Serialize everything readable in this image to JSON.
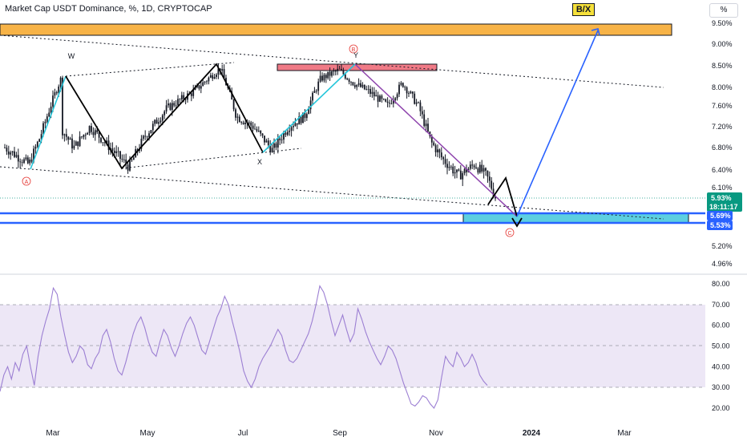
{
  "header": {
    "title": "Market Cap USDT Dominance, %, 1D, CRYPTOCAP",
    "badge": "B/X",
    "unit": "%"
  },
  "colors": {
    "price_bar": "#131722",
    "channel_line": "#131722",
    "wave_black": "#000000",
    "wave_cyan": "#26c6da",
    "wave_purple": "#8e44ad",
    "wave_blue": "#2962ff",
    "orange_zone": "#f7b347",
    "red_zone": "#f07a86",
    "teal_zone": "#5ccfe0",
    "blue_line": "#2962ff",
    "rsi_line": "#9c7fd3",
    "rsi_band": "#ede7f6",
    "label_red": "#e53935",
    "price_badge": "#089981",
    "level_badge": "#2962ff"
  },
  "chart_data": [
    {
      "type": "candlestick",
      "name": "price",
      "y_axis_ticks": [
        "9.50%",
        "9.00%",
        "8.50%",
        "8.00%",
        "7.60%",
        "7.20%",
        "6.80%",
        "6.40%",
        "6.10%",
        "5.20%",
        "4.96%"
      ],
      "x_axis_ticks": [
        "Mar",
        "May",
        "Jul",
        "Sep",
        "Nov",
        "2024",
        "Mar"
      ],
      "last_price_label": "5.93%",
      "countdown_label": "18:11:17",
      "levels": [
        "5.69%",
        "5.53%"
      ],
      "wave_labels": [
        "A",
        "W",
        "X",
        "B",
        "Y",
        "C"
      ],
      "price_path": [
        {
          "x": "Jan 05",
          "y": 6.8
        },
        {
          "x": "Jan 20",
          "y": 6.5
        },
        {
          "x": "Feb 04",
          "y": 6.42
        },
        {
          "x": "Feb 12",
          "y": 7.0
        },
        {
          "x": "Feb 25",
          "y": 8.2
        },
        {
          "x": "Mar 05",
          "y": 7.4
        },
        {
          "x": "Mar 18",
          "y": 6.8
        },
        {
          "x": "Mar 28",
          "y": 7.2
        },
        {
          "x": "Apr 10",
          "y": 6.8
        },
        {
          "x": "Apr 22",
          "y": 6.45
        },
        {
          "x": "May 01",
          "y": 7.0
        },
        {
          "x": "May 15",
          "y": 7.55
        },
        {
          "x": "Jun 01",
          "y": 7.9
        },
        {
          "x": "Jun 18",
          "y": 8.45
        },
        {
          "x": "Jun 28",
          "y": 7.4
        },
        {
          "x": "Jul 08",
          "y": 7.2
        },
        {
          "x": "Jul 20",
          "y": 6.75
        },
        {
          "x": "Jul 30",
          "y": 7.2
        },
        {
          "x": "Aug 10",
          "y": 7.4
        },
        {
          "x": "Aug 20",
          "y": 8.2
        },
        {
          "x": "Sep 01",
          "y": 8.4
        },
        {
          "x": "Sep 10",
          "y": 8.1
        },
        {
          "x": "Sep 20",
          "y": 7.9
        },
        {
          "x": "Oct 01",
          "y": 7.6
        },
        {
          "x": "Oct 10",
          "y": 8.1
        },
        {
          "x": "Oct 20",
          "y": 7.6
        },
        {
          "x": "Oct 28",
          "y": 6.9
        },
        {
          "x": "Nov 05",
          "y": 6.6
        },
        {
          "x": "Nov 15",
          "y": 6.3
        },
        {
          "x": "Nov 25",
          "y": 6.5
        },
        {
          "x": "Dec 02",
          "y": 6.3
        },
        {
          "x": "Dec 08",
          "y": 5.93
        }
      ],
      "projection": [
        {
          "x": "Dec 08",
          "y": 5.93
        },
        {
          "x": "Dec 15",
          "y": 6.3
        },
        {
          "x": "Dec 25",
          "y": 5.6
        },
        {
          "x": "Mar 15",
          "y": 9.4
        }
      ]
    },
    {
      "type": "line",
      "name": "RSI",
      "y_axis_ticks": [
        "80.00",
        "70.00",
        "60.00",
        "50.00",
        "40.00",
        "30.00",
        "20.00"
      ],
      "band": [
        30,
        70
      ],
      "mid": 50,
      "ylim": [
        15,
        85
      ],
      "values": [
        28,
        36,
        40,
        34,
        42,
        38,
        46,
        50,
        40,
        31,
        45,
        55,
        62,
        68,
        78,
        75,
        64,
        55,
        47,
        42,
        45,
        50,
        48,
        41,
        39,
        44,
        47,
        55,
        58,
        52,
        44,
        38,
        36,
        42,
        49,
        56,
        61,
        64,
        59,
        52,
        47,
        45,
        52,
        58,
        55,
        49,
        45,
        50,
        56,
        61,
        64,
        60,
        54,
        48,
        46,
        52,
        58,
        64,
        68,
        74,
        70,
        62,
        55,
        47,
        38,
        33,
        30,
        34,
        40,
        44,
        47,
        50,
        54,
        58,
        55,
        48,
        43,
        42,
        44,
        48,
        52,
        56,
        62,
        70,
        79,
        76,
        70,
        62,
        55,
        60,
        65,
        58,
        52,
        56,
        68,
        63,
        57,
        52,
        48,
        44,
        41,
        45,
        50,
        48,
        44,
        38,
        32,
        27,
        22,
        21,
        23,
        26,
        25,
        22,
        20,
        24,
        35,
        45,
        42,
        40,
        47,
        44,
        40,
        42,
        46,
        42,
        36,
        33,
        31
      ]
    }
  ]
}
